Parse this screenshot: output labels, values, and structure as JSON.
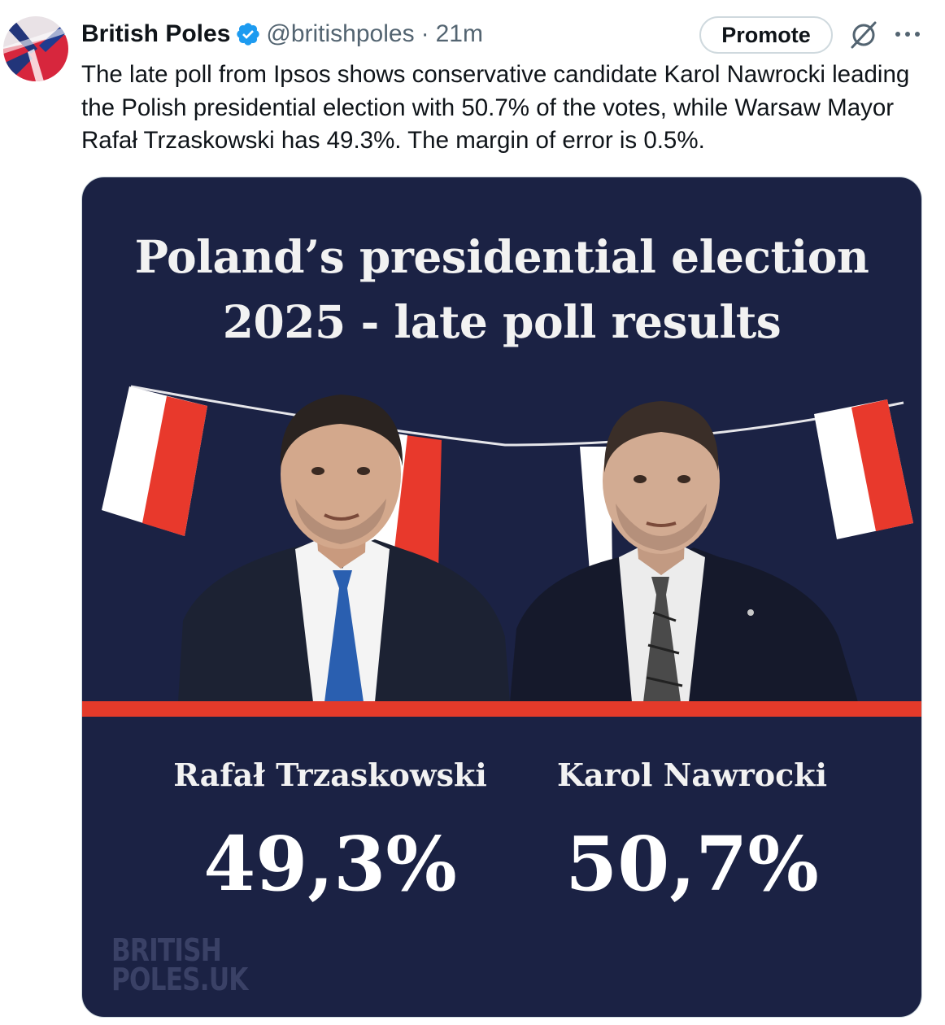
{
  "tweet": {
    "author_name": "British Poles",
    "handle": "@britishpoles",
    "separator": "·",
    "time": "21m",
    "promote_label": "Promote",
    "text": "The late poll from Ipsos shows conservative candidate Karol Nawrocki leading the Polish presidential election with 50.7% of the votes, while Warsaw Mayor Rafał Trzaskowski has 49.3%. The margin of error is 0.5%.",
    "icons": [
      "avatar-flag",
      "verified-badge-icon",
      "grok-icon",
      "more-options-icon"
    ]
  },
  "graphic": {
    "title_line1": "Poland’s presidential election",
    "title_line2": "2025 - late poll results",
    "candidates": [
      {
        "name": "Rafał Trzaskowski",
        "result": "49,3%"
      },
      {
        "name": "Karol Nawrocki",
        "result": "50,7%"
      }
    ],
    "watermark_line1": "BRITISH",
    "watermark_line2": "POLES.UK",
    "colors": {
      "background": "#1b2244",
      "accent_stripe": "#e43a2a",
      "flag_red": "#e8392c",
      "flag_white": "#ffffff"
    }
  },
  "colors": {
    "verified_blue": "#1d9bf0",
    "text_primary": "#0f1419",
    "text_secondary": "#536471"
  }
}
